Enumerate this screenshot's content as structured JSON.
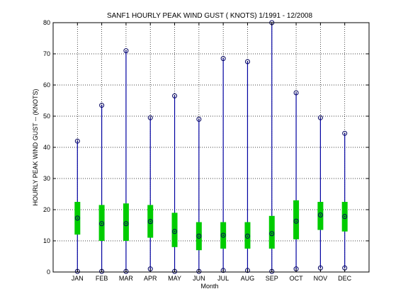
{
  "chart_data": {
    "type": "box",
    "title": "SANF1  HOURLY PEAK WIND GUST ( KNOTS) 1/1991 - 12/2008",
    "xlabel": "Month",
    "ylabel": "HOURLY PEAK WIND GUST --  (KNOTS)",
    "ylim": [
      0,
      80
    ],
    "yticks": [
      0,
      10,
      20,
      30,
      40,
      50,
      60,
      70,
      80
    ],
    "grid": true,
    "categories": [
      "JAN",
      "FEB",
      "MAR",
      "APR",
      "MAY",
      "JUN",
      "JUL",
      "AUG",
      "SEP",
      "OCT",
      "NOV",
      "DEC"
    ],
    "series": [
      {
        "min": [
          0.2,
          0.2,
          0.2,
          1.0,
          0.2,
          0.2,
          0.5,
          0.5,
          0.2,
          1.0,
          1.3,
          1.3
        ],
        "q1": [
          12.0,
          10.0,
          10.0,
          11.0,
          8.0,
          7.0,
          7.5,
          7.5,
          7.5,
          10.5,
          13.5,
          13.0
        ],
        "median": [
          17.3,
          15.5,
          15.5,
          16.2,
          13.0,
          11.5,
          11.8,
          11.5,
          12.3,
          16.3,
          18.3,
          17.8
        ],
        "q3": [
          22.5,
          21.5,
          22.0,
          21.5,
          19.0,
          16.0,
          16.0,
          16.0,
          18.0,
          23.0,
          22.5,
          22.5
        ],
        "max": [
          42.0,
          53.5,
          71.0,
          49.5,
          56.5,
          49.0,
          68.5,
          67.5,
          80.0,
          57.5,
          49.5,
          44.5
        ]
      }
    ],
    "colors": {
      "whisker": "#0000a0",
      "box": "#00cc00",
      "marker": "#000060",
      "grid": "#000000"
    }
  }
}
